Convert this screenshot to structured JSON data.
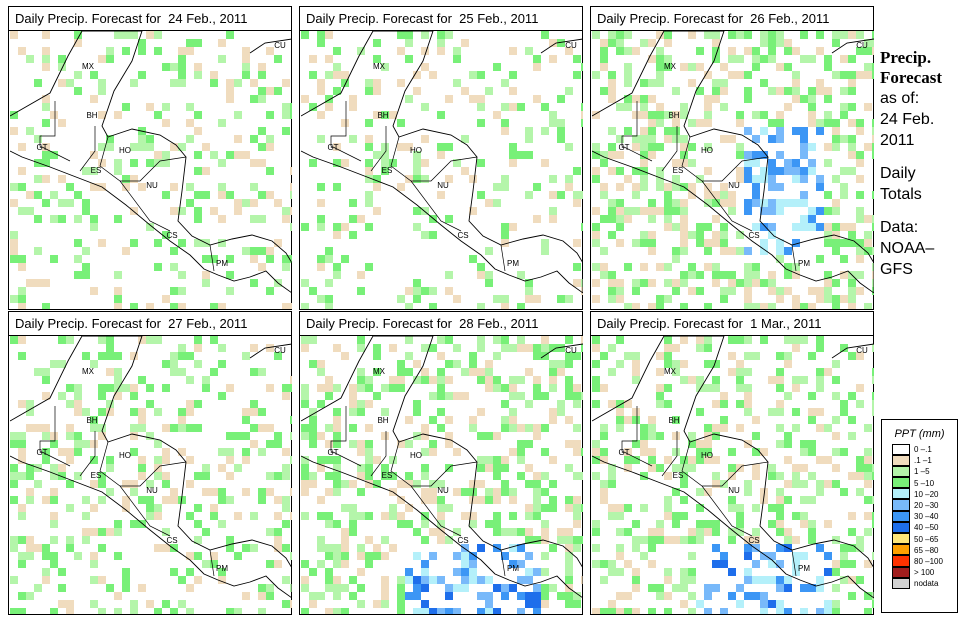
{
  "panels": [
    {
      "title": "Daily Precip. Forecast for  24 Feb., 2011"
    },
    {
      "title": "Daily Precip. Forecast for  25 Feb., 2011"
    },
    {
      "title": "Daily Precip. Forecast for  26 Feb., 2011"
    },
    {
      "title": "Daily Precip. Forecast for  27 Feb., 2011"
    },
    {
      "title": "Daily Precip. Forecast for  28 Feb., 2011"
    },
    {
      "title": "Daily Precip. Forecast for  1 Mar., 2011"
    }
  ],
  "country_labels": [
    "MX",
    "BH",
    "GT",
    "HO",
    "ES",
    "NU",
    "CS",
    "PM",
    "CU"
  ],
  "side": {
    "heading1": "Precip.",
    "heading2": "Forecast",
    "asof": "as of:",
    "date1": "24 Feb.",
    "date2": "2011",
    "daily1": "Daily",
    "daily2": "Totals",
    "data1": "Data:",
    "data2": "NOAA–",
    "data3": "GFS"
  },
  "legend": {
    "title": "PPT (mm)",
    "items": [
      {
        "label": "0 –.1",
        "color": "#ffffff"
      },
      {
        "label": ".1 –1",
        "color": "#f0dcbe"
      },
      {
        "label": "1 –5",
        "color": "#b4f5aa"
      },
      {
        "label": "5 –10",
        "color": "#78f078"
      },
      {
        "label": "10 –20",
        "color": "#b4f0fa"
      },
      {
        "label": "20 –30",
        "color": "#78b9fa"
      },
      {
        "label": "30 –40",
        "color": "#3c96f5"
      },
      {
        "label": "40 –50",
        "color": "#1e6eeb"
      },
      {
        "label": "50 –65",
        "color": "#ffe678"
      },
      {
        "label": "65 –80",
        "color": "#ffa000"
      },
      {
        "label": "80 –100",
        "color": "#ff3200"
      },
      {
        "label": "> 100",
        "color": "#a01e1e"
      },
      {
        "label": "nodata",
        "color": "#d2d2d2"
      }
    ]
  }
}
